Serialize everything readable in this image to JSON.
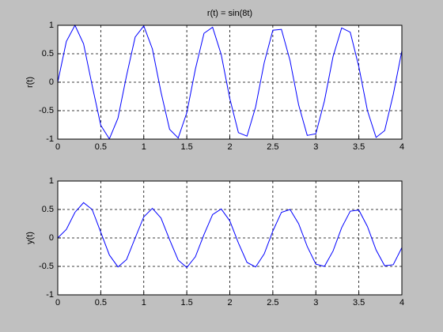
{
  "chart_data": [
    {
      "type": "line",
      "title": "r(t) = sin(8t)",
      "ylabel": "r(t)",
      "color": "#0000ff",
      "grid": true,
      "x": [
        0,
        0.1,
        0.2,
        0.3,
        0.4,
        0.5,
        0.6,
        0.7,
        0.8,
        0.9,
        1,
        1.1,
        1.2,
        1.3,
        1.4,
        1.5,
        1.6,
        1.7,
        1.8,
        1.9,
        2,
        2.1,
        2.2,
        2.3,
        2.4,
        2.5,
        2.6,
        2.7,
        2.8,
        2.9,
        3,
        3.1,
        3.2,
        3.3,
        3.4,
        3.5,
        3.6,
        3.7,
        3.8,
        3.9,
        4
      ],
      "values": [
        0,
        0.717,
        1,
        0.675,
        -0.058,
        -0.757,
        -0.996,
        -0.631,
        0.117,
        0.794,
        0.989,
        0.585,
        -0.174,
        -0.828,
        -0.98,
        -0.537,
        0.231,
        0.859,
        0.966,
        0.486,
        -0.288,
        -0.886,
        -0.948,
        -0.434,
        0.343,
        0.913,
        0.929,
        0.382,
        -0.397,
        -0.935,
        -0.906,
        -0.328,
        0.45,
        0.954,
        0.879,
        0.271,
        -0.5,
        -0.97,
        -0.851,
        -0.215,
        0.551
      ],
      "xlim": [
        0,
        4
      ],
      "xticks": [
        0,
        0.5,
        1,
        1.5,
        2,
        2.5,
        3,
        3.5,
        4
      ],
      "ylim": [
        -1,
        1
      ],
      "yticks": [
        -1,
        -0.5,
        0,
        0.5,
        1
      ]
    },
    {
      "type": "line",
      "ylabel": "y(t)",
      "color": "#0000ff",
      "grid": true,
      "x": [
        0,
        0.1,
        0.2,
        0.3,
        0.4,
        0.5,
        0.6,
        0.7,
        0.8,
        0.9,
        1,
        1.1,
        1.2,
        1.3,
        1.4,
        1.5,
        1.6,
        1.7,
        1.8,
        1.9,
        2,
        2.1,
        2.2,
        2.3,
        2.4,
        2.5,
        2.6,
        2.7,
        2.8,
        2.9,
        3,
        3.1,
        3.2,
        3.3,
        3.4,
        3.5,
        3.6,
        3.7,
        3.8,
        3.9,
        4
      ],
      "values": [
        0,
        0.15,
        0.45,
        0.62,
        0.5,
        0.1,
        -0.3,
        -0.51,
        -0.38,
        0,
        0.37,
        0.52,
        0.35,
        -0.03,
        -0.39,
        -0.52,
        -0.33,
        0.06,
        0.41,
        0.51,
        0.3,
        -0.09,
        -0.43,
        -0.51,
        -0.28,
        0.12,
        0.45,
        0.5,
        0.25,
        -0.15,
        -0.46,
        -0.5,
        -0.23,
        0.18,
        0.47,
        0.49,
        0.2,
        -0.21,
        -0.49,
        -0.47,
        -0.17
      ],
      "xlim": [
        0,
        4
      ],
      "xticks": [
        0,
        0.5,
        1,
        1.5,
        2,
        2.5,
        3,
        3.5,
        4
      ],
      "ylim": [
        -1,
        1
      ],
      "yticks": [
        -1,
        -0.5,
        0,
        0.5,
        1
      ]
    }
  ]
}
